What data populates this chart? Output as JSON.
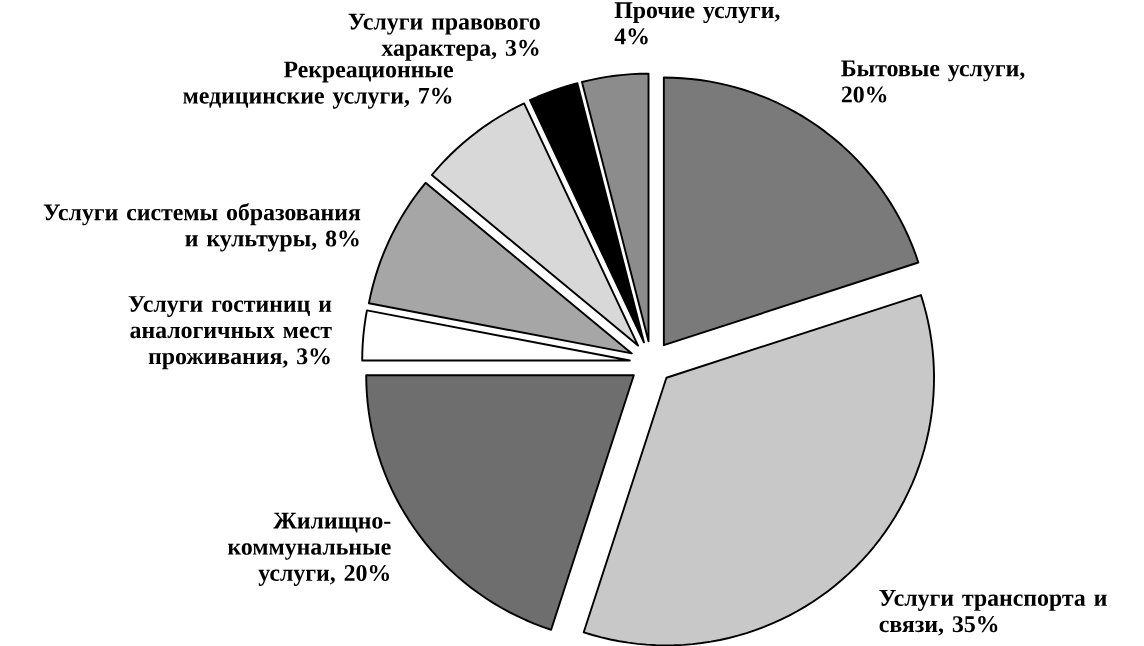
{
  "chart_data": {
    "type": "pie",
    "categories": [
      "Бытовые услуги, 20%",
      "Услуги транспорта и связи, 35%",
      "Жилищно-коммунальные услуги, 20%",
      "Услуги гостиниц и аналогичных мест проживания, 3%",
      "Услуги системы образования и культуры, 8%",
      "Рекреационные медицинские услуги, 7%",
      "Услуги правового характера, 3%",
      "Прочие услуги, 4%"
    ],
    "values": [
      20,
      35,
      20,
      3,
      8,
      7,
      3,
      4
    ],
    "colors": [
      "#7a7a7a",
      "#c8c8c8",
      "#6e6e6e",
      "#ffffff",
      "#a6a6a6",
      "#d8d8d8",
      "#000000",
      "#8c8c8c"
    ]
  }
}
